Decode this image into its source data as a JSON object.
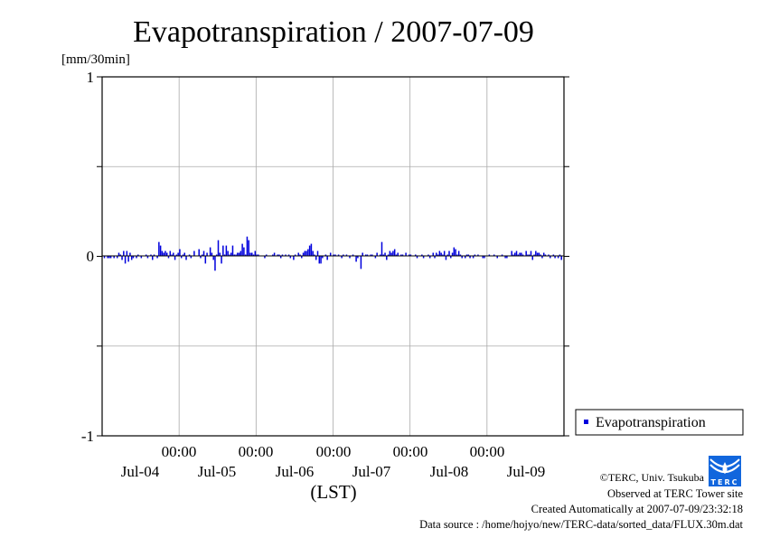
{
  "chart_data": {
    "type": "bar",
    "title": "Evapotranspiration / 2007-07-09",
    "ylabel": "[mm/30min]",
    "xlabel": "(LST)",
    "ylim": [
      -1,
      1
    ],
    "yticks": [
      "1",
      "0",
      "-1"
    ],
    "ytick_values": [
      1,
      0,
      -1
    ],
    "x_time_ticks": [
      "00:00",
      "00:00",
      "00:00",
      "00:00",
      "00:00"
    ],
    "x_day_labels": [
      "Jul-04",
      "Jul-05",
      "Jul-06",
      "Jul-07",
      "Jul-08",
      "Jul-09"
    ],
    "x_range_days": 6,
    "interval": "30min",
    "grid": true,
    "legend_position": "bottom-right outside",
    "series": [
      {
        "name": "Evapotranspiration",
        "color": "#0000dd",
        "values": [
          0,
          -0.01,
          0,
          -0.01,
          -0.01,
          -0.01,
          0,
          -0.01,
          0,
          -0.01,
          0.02,
          0.01,
          -0.02,
          0.03,
          -0.04,
          0.03,
          -0.03,
          0.02,
          -0.02,
          -0.01,
          0,
          -0.01,
          0.01,
          0,
          -0.01,
          0,
          0,
          0.01,
          -0.01,
          0,
          0.01,
          -0.02,
          0.01,
          0,
          -0.01,
          0.08,
          0.06,
          0.03,
          0.02,
          0.03,
          0.02,
          -0.01,
          0.03,
          0.01,
          0.02,
          -0.02,
          0.01,
          0.02,
          0.04,
          -0.01,
          0.01,
          0.02,
          -0.02,
          0,
          0.01,
          -0.01,
          0,
          0.03,
          0,
          0,
          0.04,
          -0.01,
          0.01,
          0.03,
          -0.04,
          0.02,
          0,
          0.05,
          0.02,
          -0.02,
          -0.08,
          0.01,
          0.09,
          0.02,
          -0.04,
          0.06,
          0.01,
          0.06,
          0.03,
          0.01,
          0.02,
          0.06,
          0.01,
          0.01,
          0.02,
          0.02,
          0.03,
          0.07,
          0.05,
          0.01,
          0.11,
          0.09,
          0.02,
          0.02,
          0.01,
          0.03,
          0.01,
          0.01,
          0,
          0,
          0,
          -0.01,
          0.01,
          0,
          0,
          0,
          0.01,
          0.02,
          0,
          0.01,
          0.01,
          -0.01,
          0.01,
          0,
          0.01,
          0,
          0.01,
          -0.01,
          0,
          -0.02,
          0.01,
          0,
          0.02,
          0.01,
          -0.01,
          0.02,
          0.03,
          0.03,
          0.04,
          0.06,
          0.07,
          0.03,
          0.01,
          -0.02,
          0.03,
          -0.04,
          -0.04,
          -0.01,
          0,
          0.01,
          -0.02,
          0,
          0.02,
          0,
          0.01,
          0.01,
          0,
          0.01,
          0,
          -0.01,
          0.01,
          0,
          0.01,
          0,
          -0.01,
          0,
          0.01,
          0,
          -0.03,
          -0.01,
          0,
          -0.07,
          0.02,
          0,
          0.01,
          0.01,
          0,
          0.01,
          0.01,
          0,
          -0.01,
          0.02,
          0,
          0.01,
          0.08,
          0.01,
          0.02,
          -0.02,
          0.01,
          0.03,
          0.02,
          0.03,
          0.04,
          0.01,
          0.02,
          0,
          0.01,
          0.01,
          0,
          0.02,
          0,
          0.01,
          0.01,
          0,
          0,
          0.01,
          -0.01,
          0,
          0,
          0.01,
          -0.01,
          0,
          0,
          0.01,
          -0.01,
          0,
          0.02,
          -0.01,
          0.02,
          0.01,
          0.03,
          0.02,
          0.01,
          0.03,
          -0.02,
          0.01,
          0.03,
          -0.01,
          0.02,
          0.05,
          0.04,
          0.01,
          0.03,
          0.01,
          -0.01,
          0,
          -0.01,
          0.01,
          0.01,
          -0.01,
          0,
          -0.01,
          0.01,
          0,
          0.01,
          0,
          0,
          -0.01,
          -0.01,
          0,
          0,
          0.01,
          0,
          0,
          0.01,
          0,
          -0.01,
          0,
          0,
          0.01,
          0,
          -0.01,
          -0.01,
          0,
          0,
          0.03,
          0.01,
          0.02,
          0.03,
          0.01,
          0.02,
          0.02,
          0.01,
          0,
          0.03,
          0.01,
          0.01,
          0.03,
          -0.02,
          0.01,
          0.03,
          0.02,
          0.02,
          0.01,
          -0.01,
          0.02,
          0.01,
          0,
          0.01,
          -0.01,
          0,
          0.01,
          -0.01,
          0,
          -0.01,
          0.01,
          -0.02,
          0
        ]
      }
    ]
  },
  "footer": {
    "copyright": "©TERC, Univ. Tsukuba",
    "observed": "Observed at TERC Tower site",
    "created": "Created Automatically at 2007-07-09/23:32:18",
    "source": "Data source : /home/hojyo/new/TERC-data/sorted_data/FLUX.30m.dat",
    "logo_text": "TERC"
  }
}
